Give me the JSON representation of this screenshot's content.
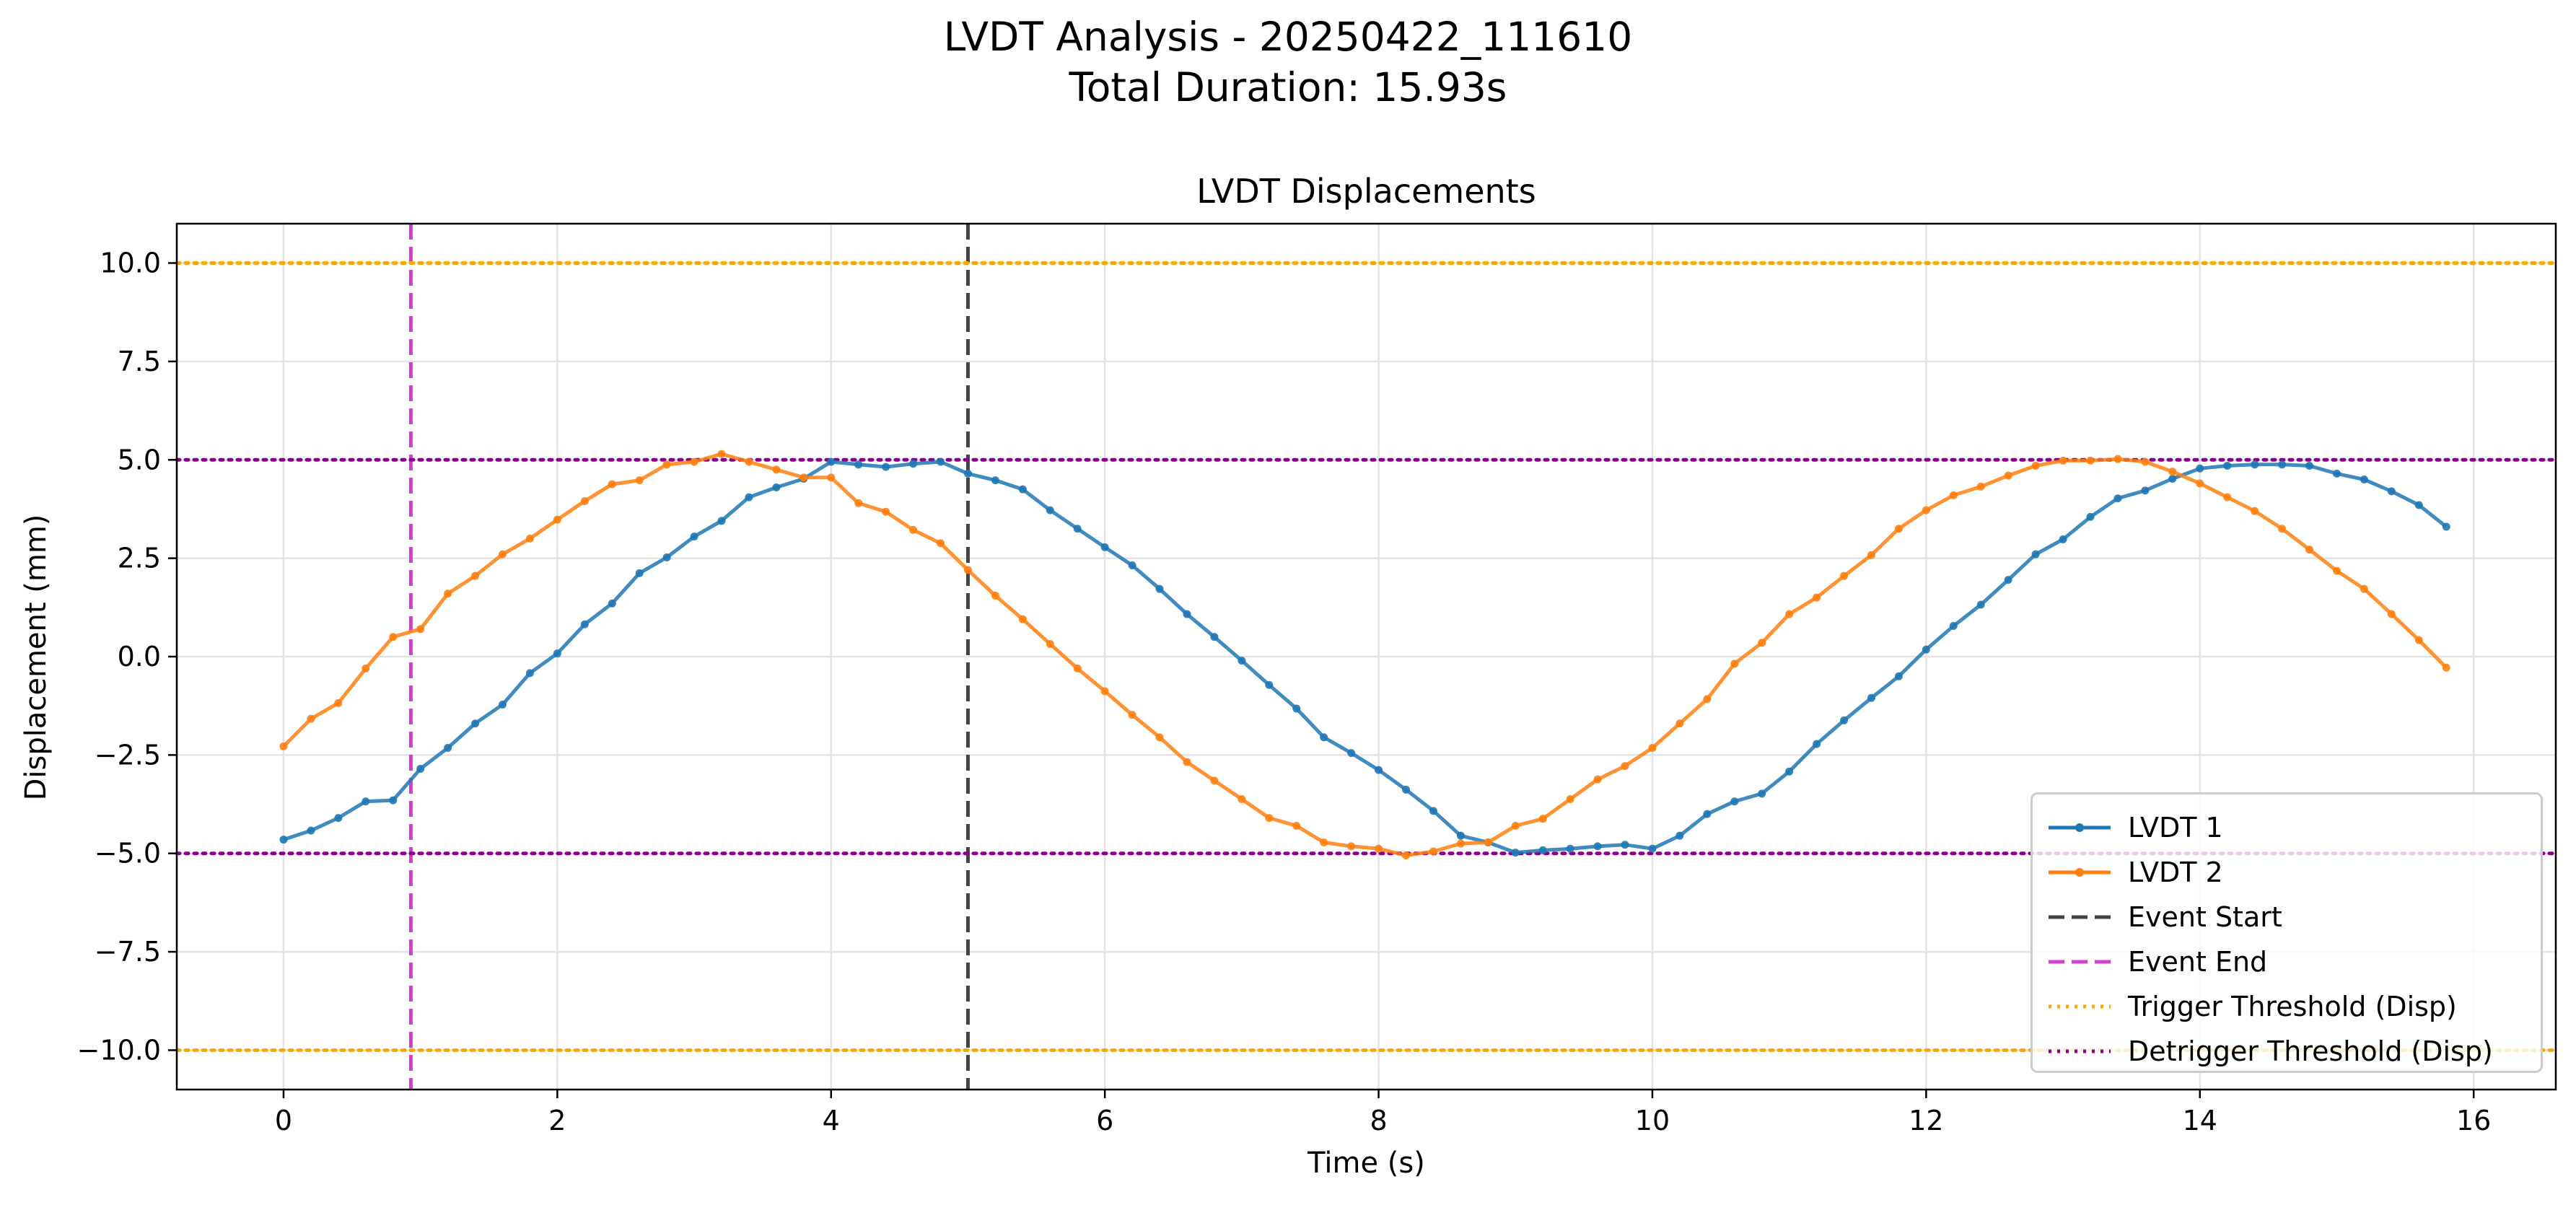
{
  "figure": {
    "suptitle_line1": "LVDT Analysis - 20250422_111610",
    "suptitle_line2": "Total Duration: 15.93s"
  },
  "chart_data": {
    "type": "line",
    "title": "LVDT Displacements",
    "xlabel": "Time (s)",
    "ylabel": "Displacement (mm)",
    "xlim": [
      -0.78,
      16.6
    ],
    "ylim": [
      -11,
      11
    ],
    "xticks": [
      0,
      2,
      4,
      6,
      8,
      10,
      12,
      14,
      16
    ],
    "xtick_labels": [
      "0",
      "2",
      "4",
      "6",
      "8",
      "10",
      "12",
      "14",
      "16"
    ],
    "yticks": [
      10,
      7.5,
      5,
      2.5,
      0,
      -2.5,
      -5,
      -7.5,
      -10
    ],
    "ytick_labels": [
      "10.0",
      "7.5",
      "5.0",
      "2.5",
      "0.0",
      "−2.5",
      "−5.0",
      "−7.5",
      "−10.0"
    ],
    "grid": true,
    "legend_placement": "lower right",
    "x": [
      0.0,
      0.2,
      0.4,
      0.6,
      0.8,
      1.0,
      1.2,
      1.4,
      1.6,
      1.8,
      2.0,
      2.2,
      2.4,
      2.6,
      2.8,
      3.0,
      3.2,
      3.4,
      3.6,
      3.8,
      4.0,
      4.2,
      4.4,
      4.6,
      4.8,
      5.0,
      5.2,
      5.4,
      5.6,
      5.8,
      6.0,
      6.2,
      6.4,
      6.6,
      6.8,
      7.0,
      7.2,
      7.4,
      7.6,
      7.8,
      8.0,
      8.2,
      8.4,
      8.6,
      8.8,
      9.0,
      9.2,
      9.4,
      9.6,
      9.8,
      10.0,
      10.2,
      10.4,
      10.6,
      10.8,
      11.0,
      11.2,
      11.4,
      11.6,
      11.8,
      12.0,
      12.2,
      12.4,
      12.6,
      12.8,
      13.0,
      13.2,
      13.4,
      13.6,
      13.8,
      14.0,
      14.2,
      14.4,
      14.6,
      14.8,
      15.0,
      15.2,
      15.4,
      15.6,
      15.8
    ],
    "series": [
      {
        "name": "LVDT 1",
        "color": "#1f77b4",
        "marker": "circle",
        "values": [
          -4.65,
          -4.42,
          -4.1,
          -3.68,
          -3.65,
          -2.85,
          -2.32,
          -1.7,
          -1.22,
          -0.42,
          0.08,
          0.82,
          1.35,
          2.12,
          2.52,
          3.05,
          3.45,
          4.05,
          4.3,
          4.52,
          4.95,
          4.88,
          4.82,
          4.9,
          4.95,
          4.65,
          4.48,
          4.25,
          3.72,
          3.25,
          2.78,
          2.32,
          1.72,
          1.08,
          0.5,
          -0.1,
          -0.72,
          -1.32,
          -2.05,
          -2.45,
          -2.88,
          -3.38,
          -3.92,
          -4.55,
          -4.72,
          -4.98,
          -4.92,
          -4.88,
          -4.82,
          -4.78,
          -4.88,
          -4.55,
          -4.0,
          -3.68,
          -3.48,
          -2.92,
          -2.22,
          -1.62,
          -1.05,
          -0.5,
          0.18,
          0.78,
          1.32,
          1.95,
          2.6,
          2.98,
          3.55,
          4.02,
          4.22,
          4.52,
          4.78,
          4.85,
          4.88,
          4.88,
          4.85,
          4.65,
          4.5,
          4.2,
          3.85,
          3.3
        ]
      },
      {
        "name": "LVDT 2",
        "color": "#ff7f0e",
        "marker": "circle",
        "values": [
          -2.28,
          -1.58,
          -1.18,
          -0.3,
          0.5,
          0.7,
          1.6,
          2.05,
          2.6,
          3.0,
          3.48,
          3.95,
          4.38,
          4.48,
          4.88,
          4.95,
          5.15,
          4.95,
          4.75,
          4.55,
          4.55,
          3.9,
          3.68,
          3.22,
          2.88,
          2.2,
          1.55,
          0.95,
          0.32,
          -0.3,
          -0.88,
          -1.48,
          -2.05,
          -2.68,
          -3.15,
          -3.62,
          -4.1,
          -4.3,
          -4.72,
          -4.82,
          -4.88,
          -5.05,
          -4.95,
          -4.75,
          -4.72,
          -4.3,
          -4.12,
          -3.62,
          -3.12,
          -2.78,
          -2.32,
          -1.7,
          -1.08,
          -0.18,
          0.35,
          1.08,
          1.5,
          2.05,
          2.58,
          3.25,
          3.72,
          4.1,
          4.32,
          4.6,
          4.85,
          4.98,
          4.98,
          5.02,
          4.95,
          4.7,
          4.4,
          4.05,
          3.7,
          3.25,
          2.72,
          2.18,
          1.72,
          1.08,
          0.42,
          -0.28
        ]
      }
    ],
    "reference_lines": [
      {
        "name": "Event Start",
        "orientation": "vertical",
        "value": 5.0,
        "color": "#444444",
        "style": "dashed"
      },
      {
        "name": "Event End",
        "orientation": "vertical",
        "value": 0.93,
        "color": "#d63ccf",
        "style": "dashed"
      },
      {
        "name": "Trigger Threshold (Disp)",
        "orientation": "horizontal",
        "values": [
          10,
          -10
        ],
        "color": "#ffa500",
        "style": "dotted"
      },
      {
        "name": "Detrigger Threshold (Disp)",
        "orientation": "horizontal",
        "values": [
          5,
          -5
        ],
        "color": "#8b008b",
        "style": "dotted"
      }
    ],
    "legend": [
      "LVDT 1",
      "LVDT 2",
      "Event Start",
      "Event End",
      "Trigger Threshold (Disp)",
      "Detrigger Threshold (Disp)"
    ]
  }
}
